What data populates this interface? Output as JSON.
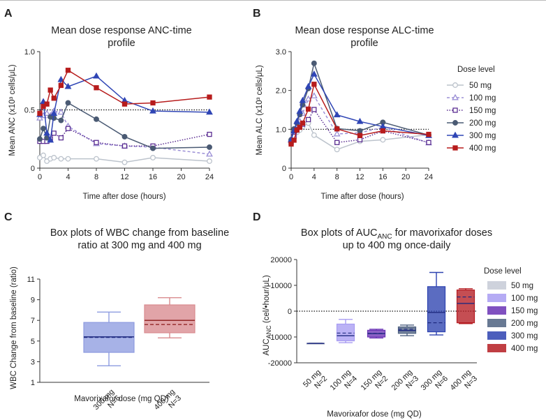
{
  "panels": {
    "A": {
      "letter": "A",
      "title_lines": [
        "Mean dose response ANC-time",
        "profile"
      ],
      "xlabel": "Time after dose (hours)",
      "ylabel": "Mean ANC (x10³ cells/μL)"
    },
    "B": {
      "letter": "B",
      "title_lines": [
        "Mean dose response ALC-time",
        "profile"
      ],
      "xlabel": "Time after dose (hours)",
      "ylabel": "Mean ALC (x10³ cells/μL)",
      "legend_title": "Dose level"
    },
    "C": {
      "letter": "C",
      "title_lines": [
        "Box plots of WBC change from baseline",
        "ratio at 300 mg and 400 mg"
      ],
      "xlabel": "Mavorixafor dose (mg QD)",
      "ylabel": "WBC Change from baseline (ratio)"
    },
    "D": {
      "letter": "D",
      "title_line1_prefix": "Box plots of AUC",
      "title_line1_sub": "ANC",
      "title_line1_suffix": " for mavorixafor doses",
      "title_line2": "up to 400 mg once-daily",
      "xlabel": "Mavorixafor dose (mg QD)",
      "ylabel_prefix": "AUC",
      "ylabel_sub": "ANC",
      "ylabel_suffix": " (cel/•hour/μL)",
      "legend_title": "Dose level"
    }
  },
  "series_style": [
    {
      "name": "50 mg",
      "color": "#bcc3cc",
      "marker": "circle-open",
      "dash": "solid"
    },
    {
      "name": "100 mg",
      "color": "#9b8fd6",
      "marker": "triangle-open",
      "dash": "dashed"
    },
    {
      "name": "150 mg",
      "color": "#5a2d91",
      "marker": "square-open",
      "dash": "dotted"
    },
    {
      "name": "200 mg",
      "color": "#4a5a73",
      "marker": "circle",
      "dash": "solid"
    },
    {
      "name": "300 mg",
      "color": "#2f45b5",
      "marker": "triangle",
      "dash": "solid"
    },
    {
      "name": "400 mg",
      "color": "#b71c1c",
      "marker": "square",
      "dash": "solid"
    }
  ],
  "chart_data": [
    {
      "panel": "A",
      "type": "line",
      "title": "Mean dose response ANC-time profile",
      "xlabel": "Time after dose (hours)",
      "ylabel": "Mean ANC (x10³ cells/μL)",
      "xlim": [
        0,
        24
      ],
      "ylim": [
        0,
        1.0
      ],
      "xticks": [
        0,
        4,
        8,
        12,
        16,
        20,
        24
      ],
      "yticks": [
        0,
        0.5,
        1.0
      ],
      "ytick_labels": [
        "0",
        "0.5",
        "1.0"
      ],
      "reference_line": 0.5,
      "series": [
        {
          "name": "50 mg",
          "x": [
            0,
            0.5,
            1,
            1.5,
            2,
            3,
            4,
            8,
            12,
            16,
            24
          ],
          "y": [
            0.09,
            0.11,
            0.06,
            0.08,
            0.09,
            0.08,
            0.08,
            0.08,
            0.05,
            0.09,
            0.06
          ]
        },
        {
          "name": "100 mg",
          "x": [
            0,
            0.5,
            1,
            1.5,
            2,
            3,
            4,
            8,
            12,
            16,
            24
          ],
          "y": [
            0.43,
            0.45,
            0.47,
            0.45,
            0.49,
            0.48,
            0.36,
            0.21,
            0.19,
            0.18,
            0.12
          ]
        },
        {
          "name": "150 mg",
          "x": [
            0,
            0.5,
            1,
            1.5,
            2,
            3,
            4,
            8,
            12,
            16,
            24
          ],
          "y": [
            0.23,
            0.23,
            0.23,
            0.25,
            0.3,
            0.26,
            0.34,
            0.22,
            0.19,
            0.19,
            0.29
          ]
        },
        {
          "name": "200 mg",
          "x": [
            0,
            0.5,
            1,
            1.5,
            2,
            3,
            4,
            8,
            12,
            16,
            24
          ],
          "y": [
            0.25,
            0.34,
            0.26,
            0.44,
            0.43,
            0.41,
            0.56,
            0.42,
            0.27,
            0.17,
            0.18
          ]
        },
        {
          "name": "300 mg",
          "x": [
            0,
            0.5,
            1,
            1.5,
            2,
            3,
            4,
            8,
            12,
            16,
            24
          ],
          "y": [
            0.46,
            0.57,
            0.3,
            0.24,
            0.47,
            0.76,
            0.7,
            0.79,
            0.58,
            0.49,
            0.48
          ]
        },
        {
          "name": "400 mg",
          "x": [
            0,
            0.5,
            1,
            1.5,
            2,
            3,
            4,
            8,
            12,
            16,
            24
          ],
          "y": [
            0.47,
            0.53,
            0.55,
            0.67,
            0.6,
            0.71,
            0.84,
            0.69,
            0.55,
            0.56,
            0.61
          ]
        }
      ]
    },
    {
      "panel": "B",
      "type": "line",
      "title": "Mean dose response ALC-time profile",
      "xlabel": "Time after dose (hours)",
      "ylabel": "Mean ALC (x10³ cells/μL)",
      "xlim": [
        0,
        24
      ],
      "ylim": [
        0,
        3.0
      ],
      "xticks": [
        0,
        4,
        8,
        12,
        16,
        20,
        24
      ],
      "yticks": [
        0,
        1.0,
        2.0,
        3.0
      ],
      "ytick_labels": [
        "0",
        "1.0",
        "2.0",
        "3.0"
      ],
      "reference_line": 1.0,
      "legend_title": "Dose level",
      "legend_position": "right",
      "series": [
        {
          "name": "50 mg",
          "x": [
            0,
            0.5,
            1,
            1.5,
            2,
            3,
            4,
            8,
            12,
            16,
            24
          ],
          "y": [
            0.63,
            0.79,
            0.92,
            0.98,
            1.07,
            1.16,
            0.85,
            0.48,
            0.69,
            0.73,
            0.86
          ]
        },
        {
          "name": "100 mg",
          "x": [
            0,
            0.5,
            1,
            1.5,
            2,
            3,
            4,
            8,
            12,
            16,
            24
          ],
          "y": [
            0.75,
            0.93,
            1.05,
            1.2,
            1.41,
            1.78,
            1.86,
            0.88,
            0.91,
            1.05,
            0.65
          ]
        },
        {
          "name": "150 mg",
          "x": [
            0,
            0.5,
            1,
            1.5,
            2,
            3,
            4,
            8,
            12,
            16,
            24
          ],
          "y": [
            0.66,
            0.82,
            1.0,
            1.06,
            1.13,
            1.25,
            1.51,
            0.66,
            0.73,
            0.96,
            0.66
          ]
        },
        {
          "name": "200 mg",
          "x": [
            0,
            0.5,
            1,
            1.5,
            2,
            3,
            4,
            8,
            12,
            16,
            24
          ],
          "y": [
            0.73,
            1.01,
            1.16,
            1.38,
            1.63,
            2.05,
            2.7,
            1.02,
            0.96,
            1.18,
            0.85
          ]
        },
        {
          "name": "300 mg",
          "x": [
            0,
            0.5,
            1,
            1.5,
            2,
            3,
            4,
            8,
            12,
            16,
            24
          ],
          "y": [
            0.72,
            0.96,
            1.2,
            1.46,
            1.74,
            2.1,
            2.42,
            1.37,
            1.2,
            1.07,
            0.84
          ]
        },
        {
          "name": "400 mg",
          "x": [
            0,
            0.5,
            1,
            1.5,
            2,
            3,
            4,
            8,
            12,
            16,
            24
          ],
          "y": [
            0.62,
            0.72,
            0.98,
            1.05,
            1.16,
            1.52,
            2.16,
            1.01,
            0.84,
            0.96,
            0.87
          ]
        }
      ]
    },
    {
      "panel": "C",
      "type": "box",
      "title": "Box plots of WBC change from baseline ratio at 300 mg and 400 mg",
      "xlabel": "Mavorixafor dose (mg QD)",
      "ylabel": "WBC Change from baseline (ratio)",
      "ylim": [
        1,
        11
      ],
      "yticks": [
        1,
        3,
        5,
        7,
        9,
        11
      ],
      "categories": [
        {
          "line1": "300 mg",
          "line2": "N=6"
        },
        {
          "line1": "400 mg",
          "line2": "N=3"
        }
      ],
      "boxes": [
        {
          "name": "300 mg",
          "color": "#8e9ce0",
          "min": 2.6,
          "q1": 3.9,
          "median": 5.4,
          "mean": 5.35,
          "q3": 6.8,
          "max": 7.8
        },
        {
          "name": "400 mg",
          "color": "#d98b8f",
          "min": 5.3,
          "q1": 5.8,
          "median": 7.0,
          "mean": 6.6,
          "q3": 8.5,
          "max": 9.2
        }
      ]
    },
    {
      "panel": "D",
      "type": "box",
      "title": "Box plots of AUC ANC for mavorixafor doses up to 400 mg once-daily",
      "xlabel": "Mavorixafor dose (mg QD)",
      "ylabel": "AUC ANC (cel/•hour/μL)",
      "ylim": [
        -20000,
        20000
      ],
      "yticks": [
        -20000,
        -10000,
        0,
        10000,
        20000
      ],
      "reference_line": 0,
      "legend_title": "Dose level",
      "legend_position": "right",
      "categories": [
        {
          "line1": "50 mg",
          "line2": "N=2"
        },
        {
          "line1": "100 mg",
          "line2": "N=4"
        },
        {
          "line1": "150 mg",
          "line2": "N=2"
        },
        {
          "line1": "200 mg",
          "line2": "N=3"
        },
        {
          "line1": "300 mg",
          "line2": "N=6"
        },
        {
          "line1": "400 mg",
          "line2": "N=3"
        }
      ],
      "boxes": [
        {
          "name": "50 mg",
          "color": "#c5cad6",
          "min": -12700,
          "q1": -12600,
          "median": -12500,
          "mean": -12500,
          "q3": -12400,
          "max": -12300
        },
        {
          "name": "100 mg",
          "color": "#a89cf2",
          "min": -12200,
          "q1": -11500,
          "median": -9500,
          "mean": -8500,
          "q3": -5000,
          "max": -3200
        },
        {
          "name": "150 mg",
          "color": "#6a33b5",
          "min": -10400,
          "q1": -10000,
          "median": -8700,
          "mean": -8600,
          "q3": -7400,
          "max": -7000
        },
        {
          "name": "200 mg",
          "color": "#4e6180",
          "min": -9500,
          "q1": -8600,
          "median": -7500,
          "mean": -7000,
          "q3": -6100,
          "max": -5400
        },
        {
          "name": "300 mg",
          "color": "#2d42b0",
          "min": -9200,
          "q1": -8000,
          "median": -500,
          "mean": -4500,
          "q3": 9500,
          "max": 15000
        },
        {
          "name": "400 mg",
          "color": "#b51c22",
          "min": -4800,
          "q1": -4500,
          "median": 3000,
          "mean": 5500,
          "q3": 8200,
          "max": 8700
        }
      ]
    }
  ]
}
